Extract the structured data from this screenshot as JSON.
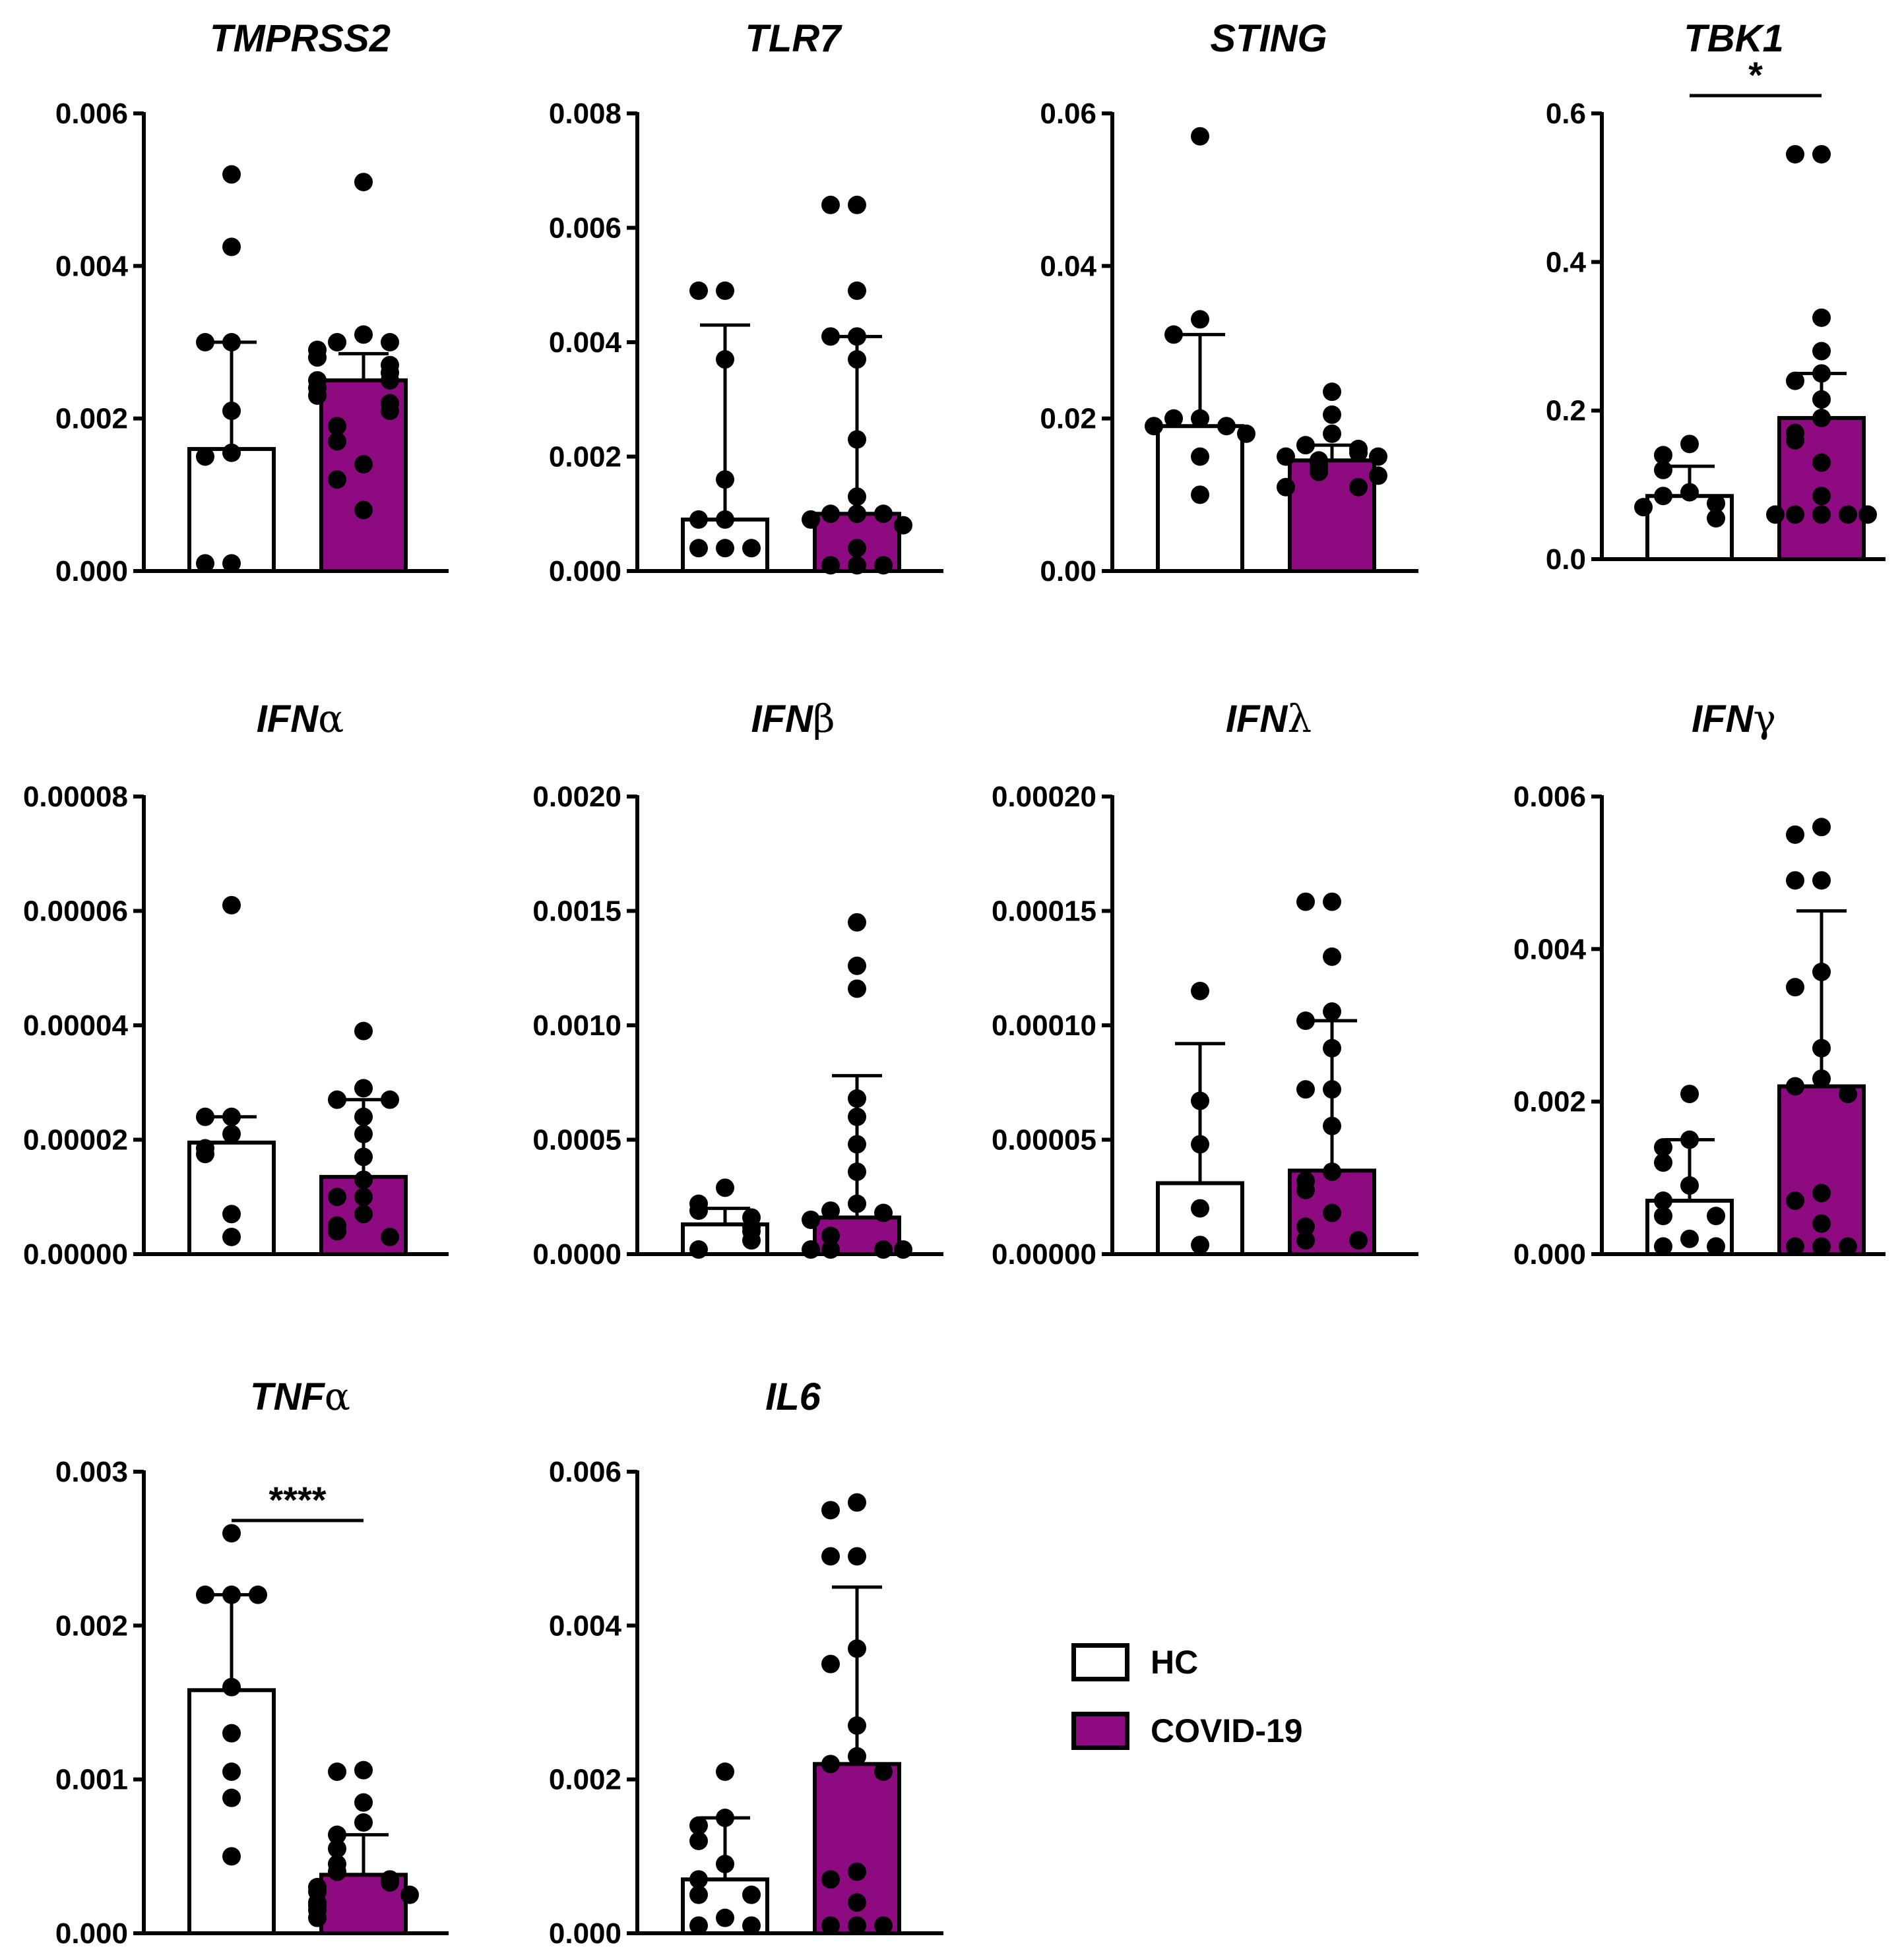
{
  "chart_data": [
    {
      "type": "bar",
      "title": "TMPRSS2",
      "ylim": [
        0,
        0.006
      ],
      "yticks": [
        "0.000",
        "0.002",
        "0.004",
        "0.006"
      ],
      "categories": [
        "HC",
        "COVID-19"
      ],
      "series": [
        {
          "name": "HC",
          "value": 0.0016,
          "error": 0.003,
          "points": [
            0.0052,
            0.00425,
            0.003,
            0.003,
            0.0021,
            0.00155,
            0.0015,
            0.0001,
            0.0001
          ]
        },
        {
          "name": "COVID-19",
          "value": 0.0025,
          "error": 0.00285,
          "points": [
            0.0051,
            0.0031,
            0.003,
            0.003,
            0.0029,
            0.0028,
            0.0027,
            0.0026,
            0.0025,
            0.0025,
            0.0024,
            0.0023,
            0.0022,
            0.0021,
            0.0019,
            0.0017,
            0.0014,
            0.0012,
            0.0008
          ]
        }
      ],
      "significance": ""
    },
    {
      "type": "bar",
      "title": "TLR7",
      "ylim": [
        0,
        0.008
      ],
      "yticks": [
        "0.000",
        "0.002",
        "0.004",
        "0.006",
        "0.008"
      ],
      "categories": [
        "HC",
        "COVID-19"
      ],
      "series": [
        {
          "name": "HC",
          "value": 0.0009,
          "error": 0.0043,
          "points": [
            0.0049,
            0.0049,
            0.0037,
            0.0016,
            0.0009,
            0.0009,
            0.0004,
            0.0004,
            0.0004
          ]
        },
        {
          "name": "COVID-19",
          "value": 0.001,
          "error": 0.0041,
          "points": [
            0.0064,
            0.0064,
            0.0049,
            0.0041,
            0.0041,
            0.0037,
            0.0023,
            0.0013,
            0.001,
            0.001,
            0.001,
            0.0009,
            0.0008,
            0.0004,
            0.0001,
            0.0001,
            0.0001
          ]
        }
      ],
      "significance": ""
    },
    {
      "type": "bar",
      "title": "STING",
      "ylim": [
        0,
        0.06
      ],
      "yticks": [
        "0.00",
        "0.02",
        "0.04",
        "0.06"
      ],
      "categories": [
        "HC",
        "COVID-19"
      ],
      "series": [
        {
          "name": "HC",
          "value": 0.019,
          "error": 0.031,
          "points": [
            0.057,
            0.033,
            0.031,
            0.02,
            0.02,
            0.019,
            0.019,
            0.018,
            0.015,
            0.01
          ]
        },
        {
          "name": "COVID-19",
          "value": 0.0145,
          "error": 0.0165,
          "points": [
            0.0235,
            0.0205,
            0.018,
            0.0165,
            0.016,
            0.0155,
            0.015,
            0.015,
            0.0145,
            0.014,
            0.0135,
            0.013,
            0.0125,
            0.011,
            0.011
          ]
        }
      ],
      "significance": ""
    },
    {
      "type": "bar",
      "title": "TBK1",
      "ylim": [
        0,
        0.6
      ],
      "yticks": [
        "0.0",
        "0.2",
        "0.4",
        "0.6"
      ],
      "categories": [
        "HC",
        "COVID-19"
      ],
      "series": [
        {
          "name": "HC",
          "value": 0.085,
          "error": 0.125,
          "points": [
            0.155,
            0.14,
            0.12,
            0.09,
            0.085,
            0.075,
            0.07,
            0.055
          ]
        },
        {
          "name": "COVID-19",
          "value": 0.19,
          "error": 0.25,
          "points": [
            0.545,
            0.545,
            0.325,
            0.28,
            0.25,
            0.24,
            0.215,
            0.19,
            0.17,
            0.16,
            0.13,
            0.085,
            0.06,
            0.06,
            0.06,
            0.06,
            0.06
          ]
        }
      ],
      "significance": "*"
    },
    {
      "type": "bar",
      "title": "IFN",
      "title_greek": "α",
      "ylim": [
        0,
        8e-05
      ],
      "yticks": [
        "0.00000",
        "0.00002",
        "0.00004",
        "0.00006",
        "0.00008"
      ],
      "categories": [
        "HC",
        "COVID-19"
      ],
      "series": [
        {
          "name": "HC",
          "value": 1.95e-05,
          "error": 2.4e-05,
          "points": [
            6.1e-05,
            2.4e-05,
            2.4e-05,
            2.1e-05,
            1.85e-05,
            1.75e-05,
            7e-06,
            3e-06
          ]
        },
        {
          "name": "COVID-19",
          "value": 1.35e-05,
          "error": 2.7e-05,
          "points": [
            3.9e-05,
            2.9e-05,
            2.7e-05,
            2.7e-05,
            2.4e-05,
            2.1e-05,
            1.7e-05,
            1.3e-05,
            1e-05,
            1e-05,
            7e-06,
            5e-06,
            4e-06,
            3e-06
          ]
        }
      ],
      "significance": ""
    },
    {
      "type": "bar",
      "title": "IFN",
      "title_greek": "β",
      "ylim": [
        0,
        0.002
      ],
      "yticks": [
        "0.0000",
        "0.0005",
        "0.0010",
        "0.0015",
        "0.0020"
      ],
      "categories": [
        "HC",
        "COVID-19"
      ],
      "series": [
        {
          "name": "HC",
          "value": 0.00013,
          "error": 0.0002,
          "points": [
            0.00029,
            0.00022,
            0.00019,
            0.00016,
            0.00012,
            0.0001,
            6e-05,
            2e-05
          ]
        },
        {
          "name": "COVID-19",
          "value": 0.00016,
          "error": 0.00078,
          "points": [
            0.00145,
            0.00126,
            0.00116,
            0.00068,
            0.0006,
            0.00048,
            0.00036,
            0.00022,
            0.00019,
            0.00018,
            0.00015,
            8e-05,
            2e-05,
            2e-05,
            2e-05,
            2e-05
          ]
        }
      ],
      "significance": ""
    },
    {
      "type": "bar",
      "title": "IFN",
      "title_greek": "λ",
      "ylim": [
        0,
        0.0002
      ],
      "yticks": [
        "0.00000",
        "0.00005",
        "0.00010",
        "0.00015",
        "0.00020"
      ],
      "categories": [
        "HC",
        "COVID-19"
      ],
      "series": [
        {
          "name": "HC",
          "value": 3.1e-05,
          "error": 9.2e-05,
          "points": [
            0.000115,
            6.7e-05,
            4.8e-05,
            2e-05,
            4e-06
          ]
        },
        {
          "name": "COVID-19",
          "value": 3.65e-05,
          "error": 0.000102,
          "points": [
            0.000154,
            0.000154,
            0.00013,
            0.000106,
            0.000102,
            9e-05,
            7.2e-05,
            7.2e-05,
            5.6e-05,
            3.6e-05,
            3.2e-05,
            2.8e-05,
            1.8e-05,
            1.2e-05,
            6e-06,
            6e-06
          ]
        }
      ],
      "significance": ""
    },
    {
      "type": "bar",
      "title": "IFN",
      "title_greek": "γ",
      "ylim": [
        0,
        0.006
      ],
      "yticks": [
        "0.000",
        "0.002",
        "0.004",
        "0.006"
      ],
      "categories": [
        "HC",
        "COVID-19"
      ],
      "series": [
        {
          "name": "HC",
          "value": 0.0007,
          "error": 0.0015,
          "points": [
            0.0021,
            0.0015,
            0.0014,
            0.0012,
            0.0009,
            0.0007,
            0.0005,
            0.0005,
            0.0002,
            0.0001,
            0.0001
          ]
        },
        {
          "name": "COVID-19",
          "value": 0.0022,
          "error": 0.0045,
          "points": [
            0.0056,
            0.0055,
            0.0049,
            0.0049,
            0.0037,
            0.0035,
            0.0027,
            0.0023,
            0.0022,
            0.0021,
            0.0008,
            0.0007,
            0.0004,
            0.0001,
            0.0001,
            0.0001
          ]
        }
      ],
      "significance": ""
    },
    {
      "type": "bar",
      "title": "TNF",
      "title_greek": "α",
      "ylim": [
        0,
        0.003
      ],
      "yticks": [
        "0.000",
        "0.001",
        "0.002",
        "0.003"
      ],
      "categories": [
        "HC",
        "COVID-19"
      ],
      "series": [
        {
          "name": "HC",
          "value": 0.00158,
          "error": 0.0022,
          "points": [
            0.0026,
            0.0022,
            0.0022,
            0.0022,
            0.0016,
            0.0013,
            0.00105,
            0.00088,
            0.0005
          ]
        },
        {
          "name": "COVID-19",
          "value": 0.00038,
          "error": 0.00064,
          "points": [
            0.00106,
            0.00105,
            0.00085,
            0.00072,
            0.00064,
            0.00055,
            0.00045,
            0.0004,
            0.00035,
            0.00033,
            0.0003,
            0.00027,
            0.00025,
            0.0002,
            0.00018,
            0.00015,
            0.0001
          ]
        }
      ],
      "significance": "****"
    },
    {
      "type": "bar",
      "title": "IL6",
      "ylim": [
        0,
        0.006
      ],
      "yticks": [
        "0.000",
        "0.002",
        "0.004",
        "0.006"
      ],
      "categories": [
        "HC",
        "COVID-19"
      ],
      "series": [
        {
          "name": "HC",
          "value": 0.0007,
          "error": 0.0015,
          "points": [
            0.0021,
            0.0015,
            0.0014,
            0.0012,
            0.0009,
            0.0007,
            0.0005,
            0.0005,
            0.0002,
            0.0001,
            0.0001
          ]
        },
        {
          "name": "COVID-19",
          "value": 0.0022,
          "error": 0.0045,
          "points": [
            0.0056,
            0.0055,
            0.0049,
            0.0049,
            0.0037,
            0.0035,
            0.0027,
            0.0023,
            0.0022,
            0.0021,
            0.0008,
            0.0007,
            0.0004,
            0.0001,
            0.0001,
            0.0001
          ]
        }
      ],
      "significance": ""
    }
  ],
  "legend": {
    "items": [
      {
        "label": "HC",
        "color": "#ffffff"
      },
      {
        "label": "COVID-19",
        "color": "#8e0a80"
      }
    ]
  },
  "colors": {
    "hc_fill": "#ffffff",
    "covid_fill": "#8e0a80",
    "ink": "#000000"
  }
}
